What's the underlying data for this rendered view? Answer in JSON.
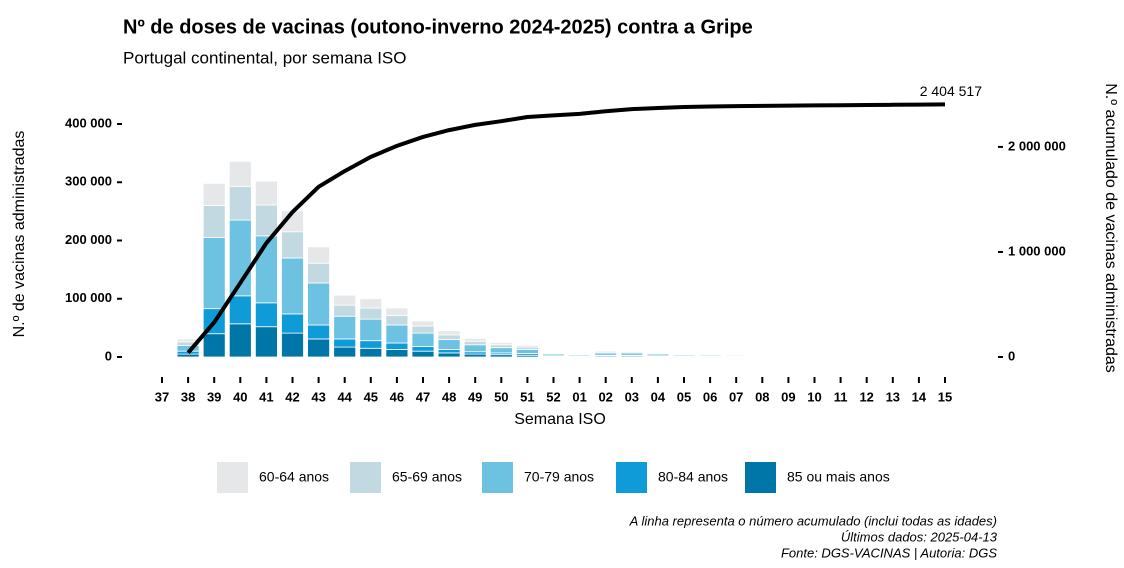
{
  "chart_data": {
    "type": "bar",
    "title": "Nº de doses de vacinas (outono-inverno 2024-2025) contra a Gripe",
    "subtitle": "Portugal continental, por semana ISO",
    "x_label": "Semana ISO",
    "y_label": "N.º de vacinas administradas",
    "y2_label": "N.º acumulado de vacinas administradas",
    "notes": [
      "A linha representa o número acumulado (inclui todas as idades)",
      "Últimos dados: 2025-04-13",
      "Fonte: DGS-VACINAS | Autoria: DGS"
    ],
    "stacked": true,
    "legend": "bottom",
    "categories": [
      "37",
      "38",
      "39",
      "40",
      "41",
      "42",
      "43",
      "44",
      "45",
      "46",
      "47",
      "48",
      "49",
      "50",
      "51",
      "52",
      "01",
      "02",
      "03",
      "04",
      "05",
      "06",
      "07",
      "08",
      "09",
      "10",
      "11",
      "12",
      "13",
      "14",
      "15"
    ],
    "series": [
      {
        "name": "60-64 anos",
        "color": "#e5e7e9",
        "values": [
          0,
          5000,
          38000,
          43000,
          41000,
          36000,
          28000,
          17000,
          16000,
          13000,
          9000,
          7000,
          5000,
          4000,
          3000,
          1000,
          1000,
          2000,
          1000,
          1000,
          400,
          300,
          300,
          300,
          200,
          200,
          200,
          100,
          100,
          100,
          100
        ]
      },
      {
        "name": "65-69 anos",
        "color": "#c3d9e2",
        "values": [
          0,
          6000,
          55000,
          58000,
          53000,
          45000,
          34000,
          19000,
          19000,
          16000,
          12000,
          8000,
          6000,
          5000,
          4000,
          1000,
          1000,
          2000,
          2000,
          1000,
          600,
          500,
          500,
          400,
          300,
          300,
          200,
          200,
          200,
          100,
          100
        ]
      },
      {
        "name": "70-79 anos",
        "color": "#6cc2e0",
        "values": [
          0,
          10000,
          122000,
          130000,
          115000,
          96000,
          72000,
          39000,
          37000,
          31000,
          23000,
          17000,
          12000,
          9000,
          7000,
          3000,
          2000,
          4000,
          4000,
          3000,
          2000,
          1800,
          1600,
          1400,
          1200,
          1000,
          800,
          700,
          600,
          400,
          300
        ]
      },
      {
        "name": "80-84 anos",
        "color": "#0f9bd7",
        "values": [
          0,
          5000,
          43000,
          48000,
          41000,
          33000,
          24000,
          14000,
          13000,
          11000,
          8000,
          6000,
          4000,
          3000,
          3000,
          1000,
          1000,
          1000,
          1000,
          1000,
          1000,
          600,
          600,
          500,
          400,
          300,
          300,
          200,
          200,
          100,
          100
        ]
      },
      {
        "name": "85 ou mais anos",
        "color": "#0076a8",
        "values": [
          0,
          5000,
          40000,
          57000,
          52000,
          41000,
          31000,
          17000,
          15000,
          13000,
          10000,
          7000,
          5000,
          4000,
          3000,
          1000,
          1000,
          2000,
          2000,
          1000,
          1000,
          800,
          700,
          600,
          500,
          400,
          300,
          300,
          200,
          200,
          100
        ]
      }
    ],
    "line": {
      "type": "line",
      "axis": "y2",
      "color": "#000000",
      "values": [
        null,
        40000,
        330000,
        705000,
        1085000,
        1380000,
        1620000,
        1770000,
        1905000,
        2010000,
        2095000,
        2160000,
        2210000,
        2245000,
        2285000,
        2300000,
        2315000,
        2340000,
        2360000,
        2370000,
        2380000,
        2385000,
        2388000,
        2391000,
        2393000,
        2395000,
        2397000,
        2399000,
        2401000,
        2403000,
        2404517
      ],
      "value_labels": [
        null,
        null,
        null,
        null,
        null,
        null,
        null,
        null,
        null,
        null,
        null,
        null,
        null,
        null,
        null,
        null,
        null,
        null,
        null,
        null,
        null,
        null,
        null,
        null,
        null,
        null,
        null,
        null,
        null,
        null,
        "2 404 517"
      ]
    },
    "ylim": [
      0,
      440000
    ],
    "yticks": [
      {
        "value": 0,
        "label": "0"
      },
      {
        "value": 100000,
        "label": "100 000"
      },
      {
        "value": 200000,
        "label": "200 000"
      },
      {
        "value": 300000,
        "label": "300 000"
      },
      {
        "value": 400000,
        "label": "400 000"
      }
    ],
    "y2lim": [
      0,
      2440000
    ],
    "y2ticks": [
      {
        "value": 0,
        "label": "0"
      },
      {
        "value": 1000000,
        "label": "1 000 000"
      },
      {
        "value": 2000000,
        "label": "2 000 000"
      }
    ],
    "grid": false
  }
}
